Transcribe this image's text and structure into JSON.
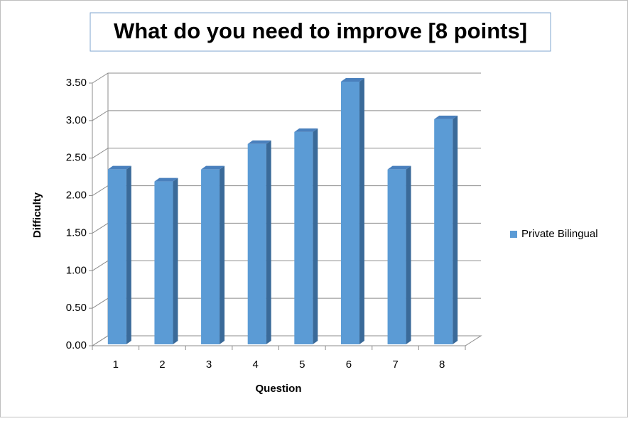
{
  "chart_data": {
    "type": "bar3d",
    "title": "What do you need to improve [8 points]",
    "x_label": "Question",
    "y_label": "Difficulty",
    "categories": [
      "1",
      "2",
      "3",
      "4",
      "5",
      "6",
      "7",
      "8"
    ],
    "series": [
      {
        "name": "Private Bilingual",
        "color": "#5b9bd5",
        "values": [
          2.33,
          2.17,
          2.33,
          2.67,
          2.83,
          3.5,
          2.33,
          3.0
        ]
      }
    ],
    "ylim": [
      0,
      3.5
    ],
    "yticks": [
      {
        "value": 0,
        "label": "0.00"
      },
      {
        "value": 0.5,
        "label": "0.50"
      },
      {
        "value": 1,
        "label": "1.00"
      },
      {
        "value": 1.5,
        "label": "1.50"
      },
      {
        "value": 2,
        "label": "2.00"
      },
      {
        "value": 2.5,
        "label": "2.50"
      },
      {
        "value": 3,
        "label": "3.00"
      },
      {
        "value": 3.5,
        "label": "3.50"
      }
    ],
    "grid": true,
    "legend": "right"
  }
}
